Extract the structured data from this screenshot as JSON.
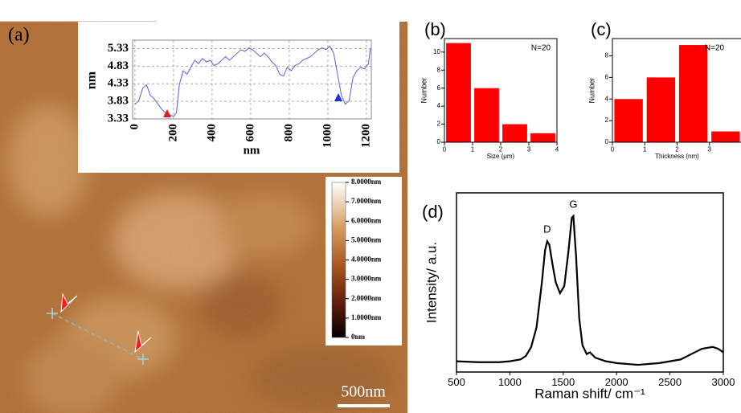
{
  "chart_data": [
    {
      "type": "line",
      "panel_label": "(a)",
      "xlabel": "nm",
      "ylabel": "nm",
      "x": [
        0,
        20,
        40,
        60,
        80,
        100,
        120,
        140,
        160,
        180,
        200,
        215,
        230,
        250,
        270,
        290,
        310,
        330,
        350,
        370,
        390,
        410,
        430,
        450,
        470,
        490,
        510,
        530,
        550,
        570,
        590,
        610,
        630,
        650,
        670,
        690,
        710,
        730,
        750,
        770,
        790,
        810,
        830,
        850,
        870,
        890,
        910,
        930,
        950,
        970,
        990,
        1010,
        1030,
        1050,
        1070,
        1090,
        1110,
        1130,
        1150,
        1170,
        1190,
        1210,
        1220
      ],
      "values": [
        3.75,
        3.85,
        4.2,
        4.3,
        4.0,
        3.9,
        3.75,
        3.6,
        3.5,
        3.45,
        3.4,
        3.5,
        4.3,
        4.7,
        4.6,
        4.8,
        5.0,
        4.9,
        5.05,
        4.95,
        5.0,
        4.85,
        4.9,
        5.0,
        5.1,
        5.0,
        5.1,
        5.2,
        5.3,
        5.25,
        5.35,
        5.3,
        5.2,
        5.1,
        5.2,
        5.1,
        4.95,
        4.85,
        4.6,
        4.55,
        4.8,
        4.7,
        4.85,
        4.9,
        5.0,
        5.05,
        5.1,
        5.2,
        5.3,
        5.35,
        5.3,
        5.4,
        5.2,
        4.6,
        4.0,
        3.75,
        3.85,
        4.5,
        4.7,
        4.8,
        4.75,
        4.9,
        5.33
      ],
      "color": "#5a5ae0",
      "grid": true,
      "xlim": [
        -12,
        1225
      ],
      "xticks": [
        0,
        200,
        400,
        600,
        800,
        1000,
        1200
      ],
      "ylim": [
        3.33,
        5.57
      ],
      "yticks": [
        3.33,
        3.83,
        4.33,
        4.83,
        5.33
      ],
      "colorbar": {
        "lim": [
          0,
          8
        ],
        "ticks": [
          {
            "value": 8,
            "label": "8.0000nm"
          },
          {
            "value": 7,
            "label": "7.0000nm"
          },
          {
            "value": 6,
            "label": "6.0000nm"
          },
          {
            "value": 5,
            "label": "5.0000nm"
          },
          {
            "value": 4,
            "label": "4.0000nm"
          },
          {
            "value": 3,
            "label": "3.0000nm"
          },
          {
            "value": 2,
            "label": "2.0000nm"
          },
          {
            "value": 1,
            "label": "1.0000nm"
          },
          {
            "value": 0,
            "label": "0nm"
          }
        ]
      },
      "scale_bar": "500nm"
    },
    {
      "type": "histogram",
      "panel_label": "(b)",
      "xlabel": "Size (μm)",
      "ylabel": "Number",
      "annotation": "N=20",
      "bins": [
        0,
        1,
        2,
        3,
        4
      ],
      "values": [
        11,
        6,
        2,
        1
      ],
      "color": "#ff0000",
      "xlim": [
        0,
        4
      ],
      "xticks": [
        0,
        1,
        2,
        3,
        4
      ],
      "ylim": [
        0,
        11.5
      ],
      "yticks": [
        0,
        2,
        4,
        6,
        8,
        10
      ]
    },
    {
      "type": "histogram",
      "panel_label": "(c)",
      "xlabel": "Thickness (nm)",
      "ylabel": "Number",
      "annotation": "N=20",
      "bins": [
        0,
        1,
        2,
        3,
        4
      ],
      "values": [
        4,
        6,
        9,
        1
      ],
      "color": "#ff0000",
      "xlim": [
        0,
        4
      ],
      "xticks": [
        0,
        1,
        2,
        3
      ],
      "ylim": [
        0,
        9.6
      ],
      "yticks": [
        0,
        2,
        4,
        6,
        8
      ]
    },
    {
      "type": "line",
      "panel_label": "(d)",
      "xlabel": "Raman shift/ cm⁻¹",
      "ylabel": "Intensity/ a.u.",
      "annotations": [
        {
          "text": "D",
          "x": 1350,
          "y": 73
        },
        {
          "text": "G",
          "x": 1595,
          "y": 87
        }
      ],
      "x": [
        500,
        700,
        900,
        1000,
        1100,
        1150,
        1200,
        1250,
        1300,
        1330,
        1350,
        1370,
        1400,
        1430,
        1470,
        1510,
        1550,
        1580,
        1595,
        1620,
        1650,
        1680,
        1720,
        1750,
        1800,
        1900,
        2000,
        2200,
        2400,
        2600,
        2700,
        2800,
        2900,
        2950,
        3000
      ],
      "values": [
        6,
        5.5,
        5.5,
        6,
        7,
        9,
        14,
        25,
        50,
        68,
        73,
        71,
        60,
        50,
        44,
        48,
        68,
        86,
        87,
        65,
        30,
        15,
        10,
        11,
        8,
        6,
        5,
        4,
        5,
        7,
        10,
        13,
        14,
        13,
        11
      ],
      "color": "#000000",
      "xlim": [
        500,
        3000
      ],
      "xticks": [
        500,
        1000,
        1500,
        2000,
        2500,
        3000
      ],
      "ylim": [
        0,
        100
      ]
    }
  ]
}
